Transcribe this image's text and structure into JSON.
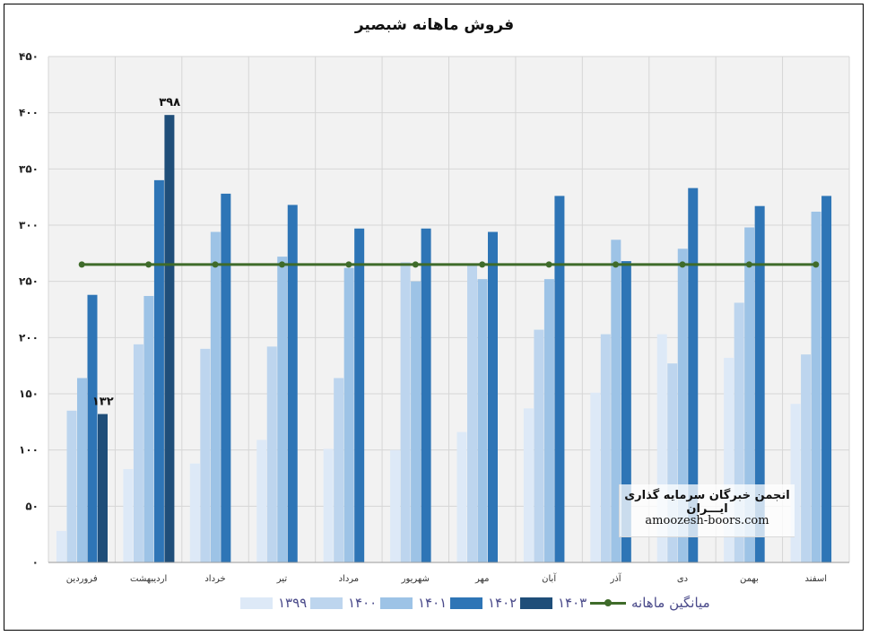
{
  "chart_data": {
    "type": "bar",
    "title": "فروش ماهانه شبصیر",
    "categories": [
      "فروردین",
      "اردیبهشت",
      "خرداد",
      "تیر",
      "مرداد",
      "شهریور",
      "مهر",
      "آبان",
      "آذر",
      "دی",
      "بهمن",
      "اسفند"
    ],
    "series": [
      {
        "name": "۱۳۹۹",
        "color": "#dde9f7",
        "values": [
          28,
          83,
          88,
          109,
          101,
          100,
          116,
          137,
          151,
          203,
          182,
          141
        ]
      },
      {
        "name": "۱۴۰۰",
        "color": "#bdd5ee",
        "values": [
          135,
          194,
          190,
          192,
          164,
          267,
          265,
          207,
          203,
          177,
          231,
          185
        ]
      },
      {
        "name": "۱۴۰۱",
        "color": "#9dc3e6",
        "values": [
          164,
          237,
          294,
          272,
          262,
          250,
          252,
          252,
          287,
          279,
          298,
          312
        ]
      },
      {
        "name": "۱۴۰۲",
        "color": "#2e75b6",
        "values": [
          238,
          340,
          328,
          318,
          297,
          297,
          294,
          326,
          268,
          333,
          317,
          326
        ]
      },
      {
        "name": "۱۴۰۳",
        "color": "#1f4e79",
        "values": [
          132,
          398,
          null,
          null,
          null,
          null,
          null,
          null,
          null,
          null,
          null,
          null
        ]
      }
    ],
    "average": {
      "name": "میانگین ماهانه",
      "color": "#3f6b2a",
      "value": 265
    },
    "data_labels": [
      {
        "series": "۱۴۰۳",
        "category": "فروردین",
        "text": "۱۳۲"
      },
      {
        "series": "۱۴۰۳",
        "category": "اردیبهشت",
        "text": "۳۹۸"
      }
    ],
    "ylim": [
      0,
      450
    ],
    "yticks": [
      0,
      50,
      100,
      150,
      200,
      250,
      300,
      350,
      400,
      450
    ],
    "ytick_labels": [
      "۰",
      "۵۰",
      "۱۰۰",
      "۱۵۰",
      "۲۰۰",
      "۲۵۰",
      "۳۰۰",
      "۳۵۰",
      "۴۰۰",
      "۴۵۰"
    ],
    "xlabel": "",
    "ylabel": "",
    "grid": true,
    "legend_position": "bottom"
  },
  "watermark": {
    "title": "انجمن خبرگان سرمایه گذاری ایـــران",
    "url": "amoozesh-boors.com"
  }
}
